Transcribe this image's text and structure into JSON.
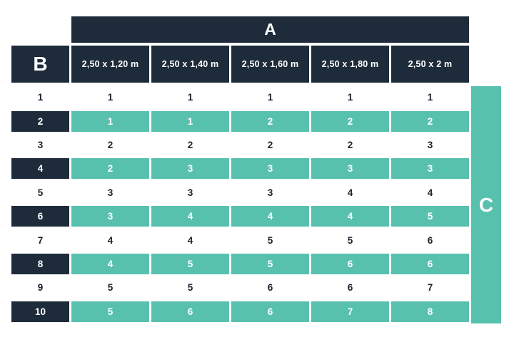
{
  "colors": {
    "navy": "#1e2b3a",
    "teal": "#57c1ae",
    "background": "#ffffff",
    "dark_text": "#16202e"
  },
  "chart_data": {
    "type": "table",
    "title": "",
    "top_axis_label": "A",
    "corner_label": "B",
    "right_axis_label": "C",
    "column_headers": [
      "2,50 x 1,20 m",
      "2,50 x 1,40 m",
      "2,50 x 1,60 m",
      "2,50 x 1,80 m",
      "2,50 x 2 m"
    ],
    "rows": [
      {
        "label": "1",
        "highlighted": false,
        "values": [
          "1",
          "1",
          "1",
          "1",
          "1"
        ]
      },
      {
        "label": "2",
        "highlighted": true,
        "values": [
          "1",
          "1",
          "2",
          "2",
          "2"
        ]
      },
      {
        "label": "3",
        "highlighted": false,
        "values": [
          "2",
          "2",
          "2",
          "2",
          "3"
        ]
      },
      {
        "label": "4",
        "highlighted": true,
        "values": [
          "2",
          "3",
          "3",
          "3",
          "3"
        ]
      },
      {
        "label": "5",
        "highlighted": false,
        "values": [
          "3",
          "3",
          "3",
          "4",
          "4"
        ]
      },
      {
        "label": "6",
        "highlighted": true,
        "values": [
          "3",
          "4",
          "4",
          "4",
          "5"
        ]
      },
      {
        "label": "7",
        "highlighted": false,
        "values": [
          "4",
          "4",
          "5",
          "5",
          "6"
        ]
      },
      {
        "label": "8",
        "highlighted": true,
        "values": [
          "4",
          "5",
          "5",
          "6",
          "6"
        ]
      },
      {
        "label": "9",
        "highlighted": false,
        "values": [
          "5",
          "5",
          "6",
          "6",
          "7"
        ]
      },
      {
        "label": "10",
        "highlighted": true,
        "values": [
          "5",
          "6",
          "6",
          "7",
          "8"
        ]
      }
    ]
  }
}
